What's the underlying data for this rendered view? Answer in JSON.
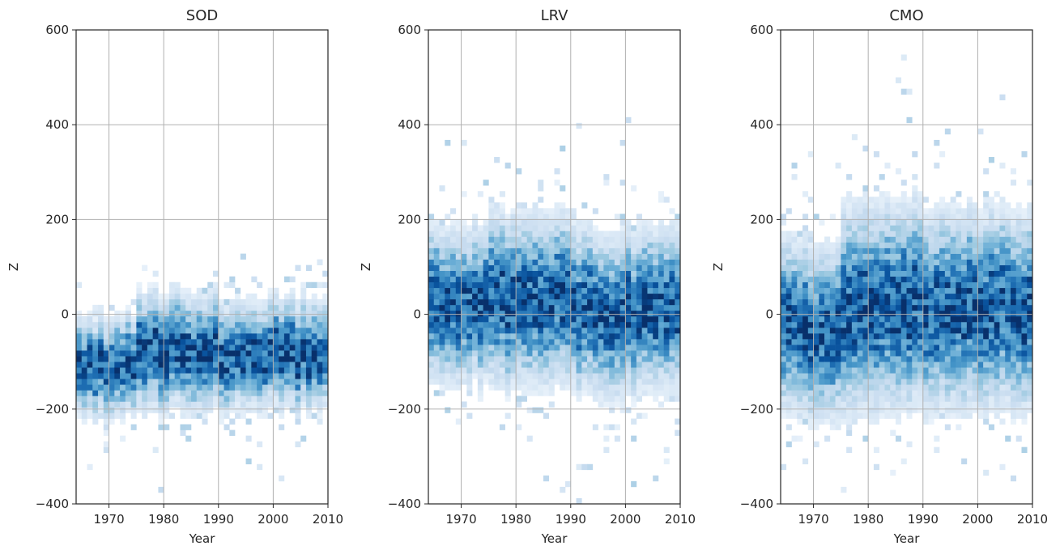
{
  "chart_data": [
    {
      "type": "heatmap",
      "title": "SOD",
      "xlabel": "Year",
      "ylabel": "Z",
      "xlim": [
        1964,
        2010
      ],
      "ylim": [
        -400,
        600
      ],
      "xticks": [
        "1970",
        "1980",
        "1990",
        "2000",
        "2010"
      ],
      "yticks": [
        "−400",
        "−200",
        "0",
        "200",
        "400",
        "600"
      ],
      "grid": true,
      "colormap": "Blues",
      "density_profile": [
        {
          "year_from": 1964,
          "year_to": 1975,
          "z_center": -110,
          "z_spread": 55
        },
        {
          "year_from": 1975,
          "year_to": 1990,
          "z_center": -80,
          "z_spread": 65
        },
        {
          "year_from": 1990,
          "year_to": 2010,
          "z_center": -85,
          "z_spread": 60
        }
      ]
    },
    {
      "type": "heatmap",
      "title": "LRV",
      "xlabel": "Year",
      "ylabel": "Z",
      "xlim": [
        1964,
        2010
      ],
      "ylim": [
        -400,
        600
      ],
      "xticks": [
        "1970",
        "1980",
        "1990",
        "2000",
        "2010"
      ],
      "yticks": [
        "−400",
        "−200",
        "0",
        "200",
        "400",
        "600"
      ],
      "grid": true,
      "colormap": "Blues",
      "density_profile": [
        {
          "year_from": 1964,
          "year_to": 1975,
          "z_center": 20,
          "z_spread": 85
        },
        {
          "year_from": 1975,
          "year_to": 1990,
          "z_center": 30,
          "z_spread": 95
        },
        {
          "year_from": 1990,
          "year_to": 2010,
          "z_center": 5,
          "z_spread": 90
        }
      ]
    },
    {
      "type": "heatmap",
      "title": "CMO",
      "xlabel": "Year",
      "ylabel": "Z",
      "xlim": [
        1964,
        2010
      ],
      "ylim": [
        -400,
        600
      ],
      "xticks": [
        "1970",
        "1980",
        "1990",
        "2000",
        "2010"
      ],
      "yticks": [
        "−400",
        "−200",
        "0",
        "200",
        "400",
        "600"
      ],
      "grid": true,
      "colormap": "Blues",
      "density_profile": [
        {
          "year_from": 1964,
          "year_to": 1975,
          "z_center": -30,
          "z_spread": 95
        },
        {
          "year_from": 1975,
          "year_to": 1990,
          "z_center": 20,
          "z_spread": 115
        },
        {
          "year_from": 1990,
          "year_to": 2010,
          "z_center": 10,
          "z_spread": 110
        }
      ]
    }
  ]
}
